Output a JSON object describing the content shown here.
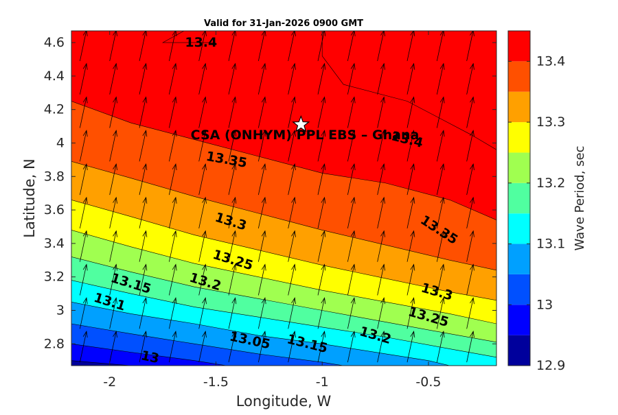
{
  "chart_data": {
    "type": "contour",
    "title": "Valid for 31-Jan-2026 0900 GMT",
    "xlabel": "Longitude, W",
    "ylabel": "Latitude, N",
    "xlim": [
      -2.18,
      -0.18
    ],
    "ylim": [
      2.67,
      4.67
    ],
    "xticks": [
      -2,
      -1.5,
      -1,
      -0.5
    ],
    "xtick_labels": [
      "-2",
      "-1.5",
      "-1",
      "-0.5"
    ],
    "yticks": [
      2.8,
      3.0,
      3.2,
      3.4,
      3.6,
      3.8,
      4.0,
      4.2,
      4.4,
      4.6
    ],
    "ytick_labels": [
      "2.8",
      "3",
      "3.2",
      "3.4",
      "3.6",
      "3.8",
      "4",
      "4.2",
      "4.4",
      "4.6"
    ],
    "colorbar": {
      "label": "Wave Period, sec",
      "range": [
        12.9,
        13.45
      ],
      "levels": [
        12.9,
        12.95,
        13.0,
        13.05,
        13.1,
        13.15,
        13.2,
        13.25,
        13.3,
        13.35,
        13.4,
        13.45
      ],
      "colors": [
        "#00009c",
        "#0000ff",
        "#0050ff",
        "#00a0ff",
        "#00ffff",
        "#50ffa0",
        "#a0ff50",
        "#ffff00",
        "#ffa000",
        "#ff5000",
        "#ff0000"
      ],
      "tick_values": [
        12.9,
        13.0,
        13.1,
        13.2,
        13.3,
        13.4
      ],
      "tick_labels": [
        "12.9",
        "13",
        "13.1",
        "13.2",
        "13.3",
        "13.4"
      ]
    },
    "contours": [
      {
        "level": 12.95,
        "points": [
          [
            -2.18,
            2.7
          ],
          [
            -1.9,
            2.67
          ]
        ]
      },
      {
        "level": 13.0,
        "points": [
          [
            -2.18,
            2.8
          ],
          [
            -1.9,
            2.75
          ],
          [
            -1.6,
            2.7
          ],
          [
            -1.45,
            2.67
          ]
        ]
      },
      {
        "level": 13.05,
        "points": [
          [
            -2.18,
            2.92
          ],
          [
            -1.9,
            2.86
          ],
          [
            -1.6,
            2.8
          ],
          [
            -1.3,
            2.74
          ],
          [
            -1.0,
            2.69
          ],
          [
            -0.9,
            2.67
          ]
        ]
      },
      {
        "level": 13.1,
        "points": [
          [
            -2.18,
            3.05
          ],
          [
            -1.9,
            2.98
          ],
          [
            -1.6,
            2.92
          ],
          [
            -1.3,
            2.85
          ],
          [
            -1.0,
            2.8
          ],
          [
            -0.7,
            2.74
          ],
          [
            -0.5,
            2.7
          ],
          [
            -0.4,
            2.67
          ]
        ]
      },
      {
        "level": 13.15,
        "points": [
          [
            -2.18,
            3.18
          ],
          [
            -1.9,
            3.1
          ],
          [
            -1.6,
            3.02
          ],
          [
            -1.3,
            2.96
          ],
          [
            -1.0,
            2.9
          ],
          [
            -0.7,
            2.84
          ],
          [
            -0.4,
            2.77
          ],
          [
            -0.18,
            2.72
          ]
        ]
      },
      {
        "level": 13.2,
        "points": [
          [
            -2.18,
            3.32
          ],
          [
            -1.9,
            3.23
          ],
          [
            -1.6,
            3.14
          ],
          [
            -1.3,
            3.07
          ],
          [
            -1.0,
            3.0
          ],
          [
            -0.7,
            2.93
          ],
          [
            -0.4,
            2.86
          ],
          [
            -0.18,
            2.81
          ]
        ]
      },
      {
        "level": 13.25,
        "points": [
          [
            -2.18,
            3.48
          ],
          [
            -1.9,
            3.38
          ],
          [
            -1.6,
            3.28
          ],
          [
            -1.3,
            3.2
          ],
          [
            -1.0,
            3.12
          ],
          [
            -0.7,
            3.05
          ],
          [
            -0.4,
            2.98
          ],
          [
            -0.18,
            2.92
          ]
        ]
      },
      {
        "level": 13.3,
        "points": [
          [
            -2.18,
            3.66
          ],
          [
            -1.9,
            3.56
          ],
          [
            -1.6,
            3.45
          ],
          [
            -1.3,
            3.36
          ],
          [
            -1.0,
            3.27
          ],
          [
            -0.7,
            3.19
          ],
          [
            -0.4,
            3.11
          ],
          [
            -0.18,
            3.06
          ]
        ]
      },
      {
        "level": 13.35,
        "points": [
          [
            -2.18,
            3.89
          ],
          [
            -1.9,
            3.79
          ],
          [
            -1.6,
            3.68
          ],
          [
            -1.3,
            3.58
          ],
          [
            -1.0,
            3.48
          ],
          [
            -0.7,
            3.39
          ],
          [
            -0.4,
            3.3
          ],
          [
            -0.18,
            3.24
          ]
        ]
      },
      {
        "level": 13.4,
        "points": [
          [
            -2.18,
            4.25
          ],
          [
            -1.9,
            4.12
          ],
          [
            -1.6,
            4.02
          ],
          [
            -1.3,
            3.92
          ],
          [
            -1.0,
            3.82
          ],
          [
            -0.7,
            3.76
          ],
          [
            -0.4,
            3.66
          ],
          [
            -0.18,
            3.54
          ]
        ]
      }
    ],
    "patches_13_4_plus": [
      {
        "level": 13.4,
        "points": [
          [
            -1.0,
            4.67
          ],
          [
            -1.0,
            4.52
          ],
          [
            -0.9,
            4.35
          ],
          [
            -0.6,
            4.25
          ],
          [
            -0.3,
            4.05
          ],
          [
            -0.18,
            3.96
          ],
          [
            -0.18,
            4.67
          ]
        ]
      },
      {
        "level": 13.4,
        "points": [
          [
            -1.65,
            4.67
          ],
          [
            -1.75,
            4.6
          ],
          [
            -1.5,
            4.6
          ],
          [
            -1.35,
            4.67
          ]
        ]
      }
    ],
    "contour_labels": [
      {
        "text": "13.4",
        "x": -1.57,
        "y": 4.6,
        "rotation": 0
      },
      {
        "text": "13.4",
        "x": -0.6,
        "y": 4.02,
        "rotation": 14
      },
      {
        "text": "13.35",
        "x": -1.45,
        "y": 3.9,
        "rotation": 10
      },
      {
        "text": "13.35",
        "x": -0.45,
        "y": 3.48,
        "rotation": 33
      },
      {
        "text": "13.3",
        "x": -1.43,
        "y": 3.53,
        "rotation": 17
      },
      {
        "text": "13.3",
        "x": -0.46,
        "y": 3.11,
        "rotation": 16
      },
      {
        "text": "13.25",
        "x": -1.42,
        "y": 3.3,
        "rotation": 17
      },
      {
        "text": "13.25",
        "x": -0.5,
        "y": 2.96,
        "rotation": 16
      },
      {
        "text": "13.2",
        "x": -1.55,
        "y": 3.17,
        "rotation": 17
      },
      {
        "text": "13.2",
        "x": -0.75,
        "y": 2.85,
        "rotation": 16
      },
      {
        "text": "13.15",
        "x": -1.9,
        "y": 3.16,
        "rotation": 17
      },
      {
        "text": "13.15",
        "x": -1.07,
        "y": 2.8,
        "rotation": 14
      },
      {
        "text": "13.1",
        "x": -2.0,
        "y": 3.05,
        "rotation": 17
      },
      {
        "text": "13.05",
        "x": -1.34,
        "y": 2.82,
        "rotation": 12
      },
      {
        "text": "13",
        "x": -1.81,
        "y": 2.72,
        "rotation": 12
      }
    ],
    "vectors": {
      "direction_deg": 12,
      "x_spacing": 0.14,
      "y_spacing": 0.2,
      "note": "uniform wave direction arrows"
    },
    "marker": {
      "type": "star",
      "x": -1.1,
      "y": 4.11,
      "label": "CSA (ONHYM) PPL EBS  – Ghana"
    }
  }
}
